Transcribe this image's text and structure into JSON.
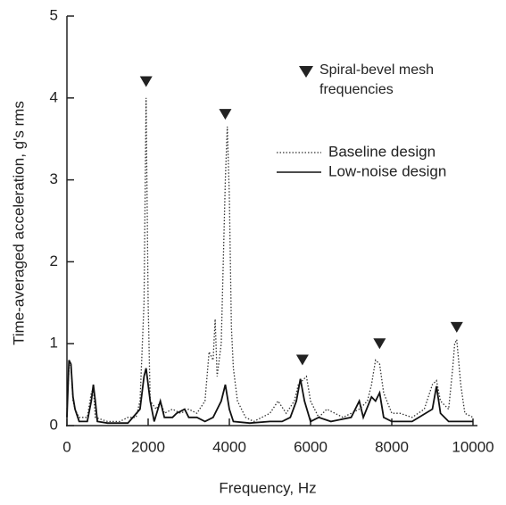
{
  "chart_data": {
    "type": "line",
    "xlabel": "Frequency, Hz",
    "ylabel": "Time-averaged acceleration, g's rms",
    "xlim": [
      0,
      10000
    ],
    "ylim": [
      0,
      5
    ],
    "xticks": [
      0,
      2000,
      4000,
      6000,
      8000,
      10000
    ],
    "yticks": [
      0,
      1,
      2,
      3,
      4,
      5
    ],
    "series": [
      {
        "name": "Baseline design",
        "style": "dotted",
        "color": "#333",
        "x": [
          0,
          50,
          100,
          150,
          200,
          300,
          500,
          600,
          650,
          700,
          1000,
          1300,
          1500,
          1700,
          1800,
          1900,
          1950,
          2000,
          2050,
          2200,
          2300,
          2400,
          2600,
          2800,
          3000,
          3200,
          3400,
          3500,
          3600,
          3650,
          3700,
          3800,
          3850,
          3900,
          3950,
          4000,
          4050,
          4100,
          4200,
          4400,
          4600,
          4800,
          5000,
          5200,
          5400,
          5600,
          5700,
          5800,
          5900,
          6000,
          6200,
          6400,
          6600,
          6800,
          7000,
          7200,
          7400,
          7500,
          7600,
          7700,
          7800,
          8000,
          8200,
          8500,
          8800,
          9000,
          9100,
          9200,
          9400,
          9500,
          9550,
          9600,
          9700,
          9800,
          10000
        ],
        "values": [
          0.2,
          0.7,
          0.75,
          0.3,
          0.2,
          0.1,
          0.1,
          0.4,
          0.45,
          0.1,
          0.05,
          0.05,
          0.1,
          0.1,
          0.3,
          1.5,
          4.0,
          1.5,
          0.3,
          0.2,
          0.3,
          0.15,
          0.2,
          0.15,
          0.2,
          0.15,
          0.3,
          0.9,
          0.8,
          1.3,
          0.6,
          1.0,
          2.0,
          3.0,
          3.65,
          2.8,
          1.2,
          0.7,
          0.3,
          0.1,
          0.05,
          0.1,
          0.15,
          0.3,
          0.15,
          0.3,
          0.5,
          0.55,
          0.6,
          0.3,
          0.1,
          0.2,
          0.15,
          0.1,
          0.15,
          0.2,
          0.3,
          0.5,
          0.8,
          0.75,
          0.4,
          0.15,
          0.15,
          0.1,
          0.2,
          0.5,
          0.55,
          0.3,
          0.2,
          0.7,
          1.0,
          1.05,
          0.5,
          0.15,
          0.1
        ]
      },
      {
        "name": "Low-noise design",
        "style": "solid",
        "color": "#111",
        "x": [
          0,
          50,
          100,
          150,
          200,
          300,
          500,
          600,
          650,
          700,
          750,
          1000,
          1500,
          1800,
          1900,
          1950,
          2050,
          2150,
          2300,
          2400,
          2600,
          2700,
          2900,
          3000,
          3200,
          3400,
          3600,
          3800,
          3900,
          4000,
          4100,
          4500,
          5000,
          5300,
          5500,
          5650,
          5750,
          5850,
          6000,
          6200,
          6500,
          7000,
          7200,
          7300,
          7500,
          7600,
          7700,
          7800,
          8000,
          8500,
          9000,
          9100,
          9200,
          9400,
          9600,
          10000
        ],
        "values": [
          0.1,
          0.8,
          0.75,
          0.35,
          0.2,
          0.05,
          0.05,
          0.3,
          0.5,
          0.3,
          0.05,
          0.03,
          0.03,
          0.2,
          0.6,
          0.7,
          0.3,
          0.05,
          0.3,
          0.1,
          0.1,
          0.15,
          0.2,
          0.1,
          0.1,
          0.05,
          0.1,
          0.3,
          0.5,
          0.2,
          0.05,
          0.03,
          0.05,
          0.05,
          0.1,
          0.3,
          0.57,
          0.3,
          0.05,
          0.1,
          0.05,
          0.1,
          0.3,
          0.1,
          0.35,
          0.3,
          0.4,
          0.1,
          0.05,
          0.05,
          0.2,
          0.48,
          0.15,
          0.05,
          0.05,
          0.05
        ]
      }
    ],
    "markers": {
      "name": "Spiral-bevel mesh frequencies",
      "x": [
        1950,
        3900,
        5800,
        7700,
        9600
      ],
      "values": [
        4.2,
        3.8,
        0.8,
        1.0,
        1.2
      ]
    }
  }
}
